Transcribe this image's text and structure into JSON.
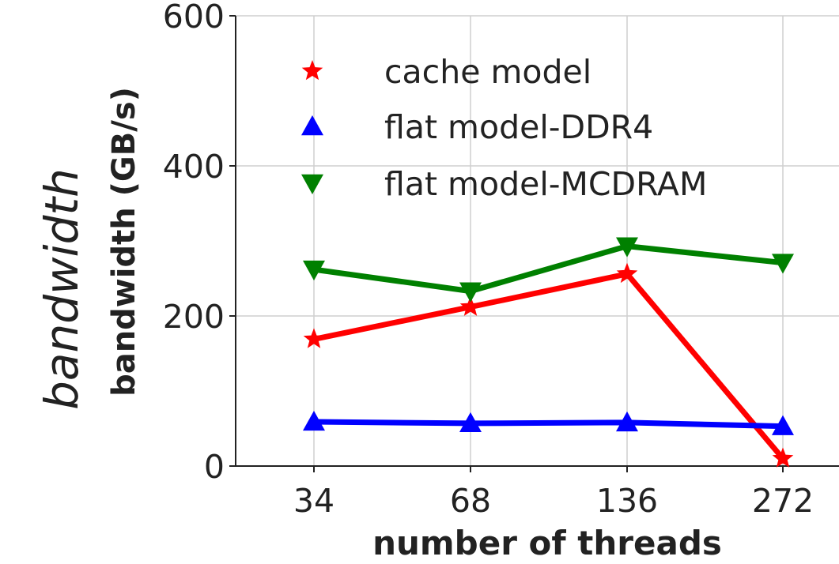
{
  "chart_data": {
    "type": "line",
    "title": "",
    "xlabel": "number of threads",
    "ylabel_italic": "bandwidth",
    "ylabel": "bandwidth (GB/s)",
    "categories": [
      "34",
      "68",
      "136",
      "272"
    ],
    "ylim": [
      0,
      600
    ],
    "yticks": [
      0,
      200,
      400,
      600
    ],
    "grid": true,
    "legend_position": "top-left",
    "series": [
      {
        "name": "cache model",
        "color": "#ff0000",
        "marker": "star",
        "values": [
          169,
          212,
          256,
          10
        ]
      },
      {
        "name": "flat model-DDR4",
        "color": "#0000ff",
        "marker": "triangle-up",
        "values": [
          59,
          57,
          58,
          53
        ]
      },
      {
        "name": "flat model-MCDRAM",
        "color": "#008000",
        "marker": "triangle-down",
        "values": [
          262,
          233,
          293,
          271
        ]
      }
    ]
  }
}
